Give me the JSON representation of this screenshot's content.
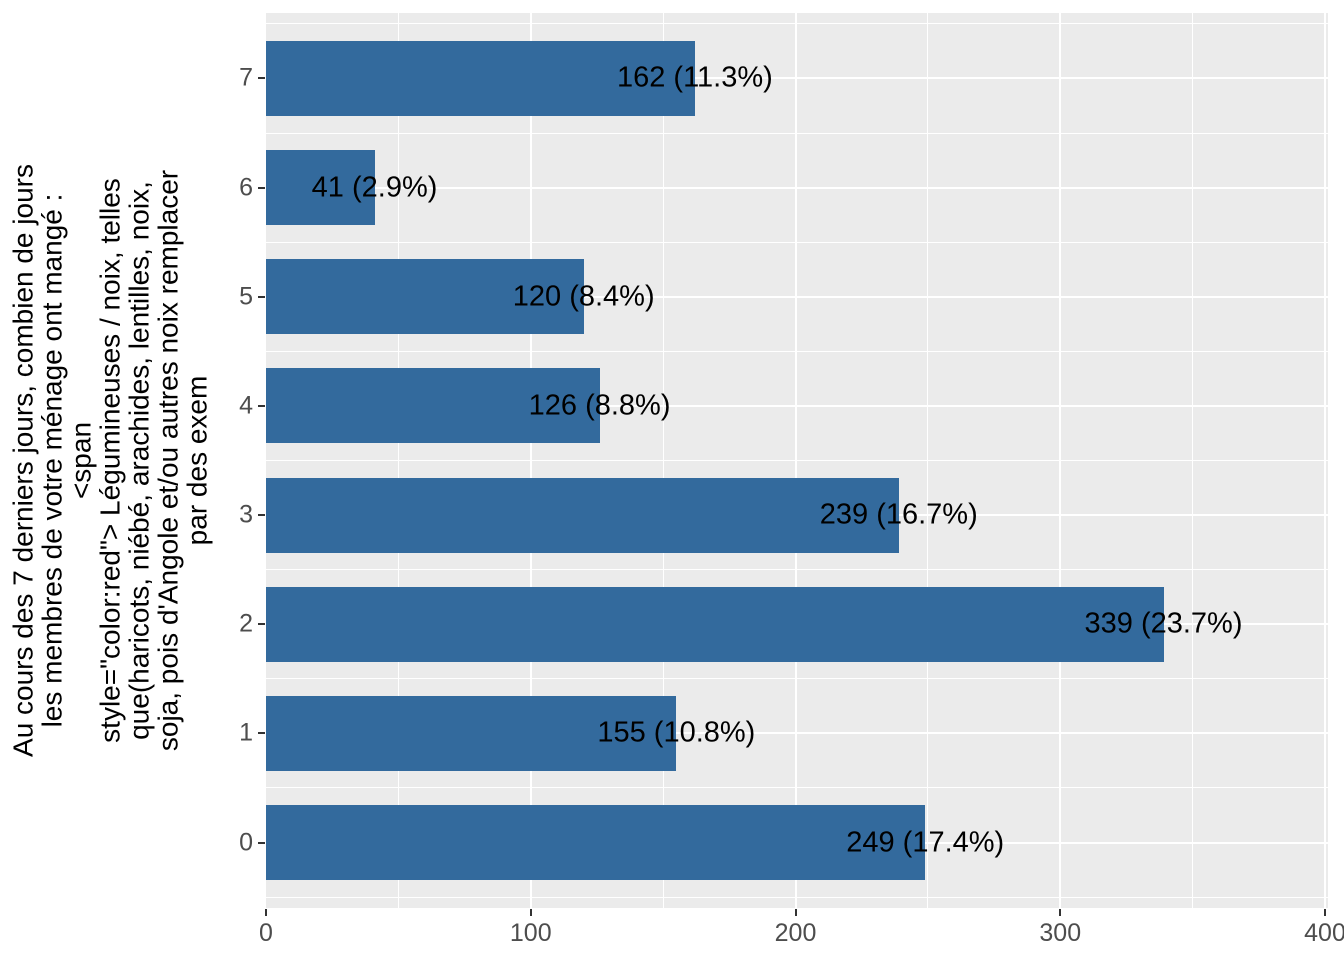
{
  "chart_data": {
    "type": "bar",
    "orientation": "horizontal",
    "title": "",
    "xlabel": "",
    "ylabel_lines": [
      "Au cours des 7 derniers jours, combien de jours",
      "les membres de votre ménage ont mangé :",
      "<span",
      "style=\"color:red\"> Légumineuses / noix, telles",
      "que(haricots, niébé, arachides, lentilles, noix,",
      "soja, pois d'Angole et/ou autres noix remplacer",
      "par des exem"
    ],
    "categories": [
      "7",
      "6",
      "5",
      "4",
      "3",
      "2",
      "1",
      "0"
    ],
    "categories_order_note": "displayed top to bottom",
    "values": [
      162,
      41,
      120,
      126,
      239,
      339,
      155,
      249
    ],
    "percents": [
      11.3,
      2.9,
      8.4,
      8.8,
      16.7,
      23.7,
      10.8,
      17.4
    ],
    "bar_labels": [
      "162 (11.3%)",
      "41 (2.9%)",
      "120 (8.4%)",
      "126 (8.8%)",
      "239 (16.7%)",
      "339 (23.7%)",
      "155 (10.8%)",
      "249 (17.4%)"
    ],
    "x_ticks": [
      0,
      100,
      200,
      300,
      400
    ],
    "x_minor_ticks": [
      50,
      150,
      250,
      350
    ],
    "xlim": [
      0,
      401
    ],
    "grid": true,
    "legend": "none",
    "colors": {
      "bar": "#336A9D",
      "panel_bg": "#EBEBEB",
      "grid": "#FFFFFF",
      "axis_text": "#4D4D4D",
      "tick": "#333333",
      "bar_label_text": "#000000",
      "background": "#FFFFFF"
    }
  }
}
